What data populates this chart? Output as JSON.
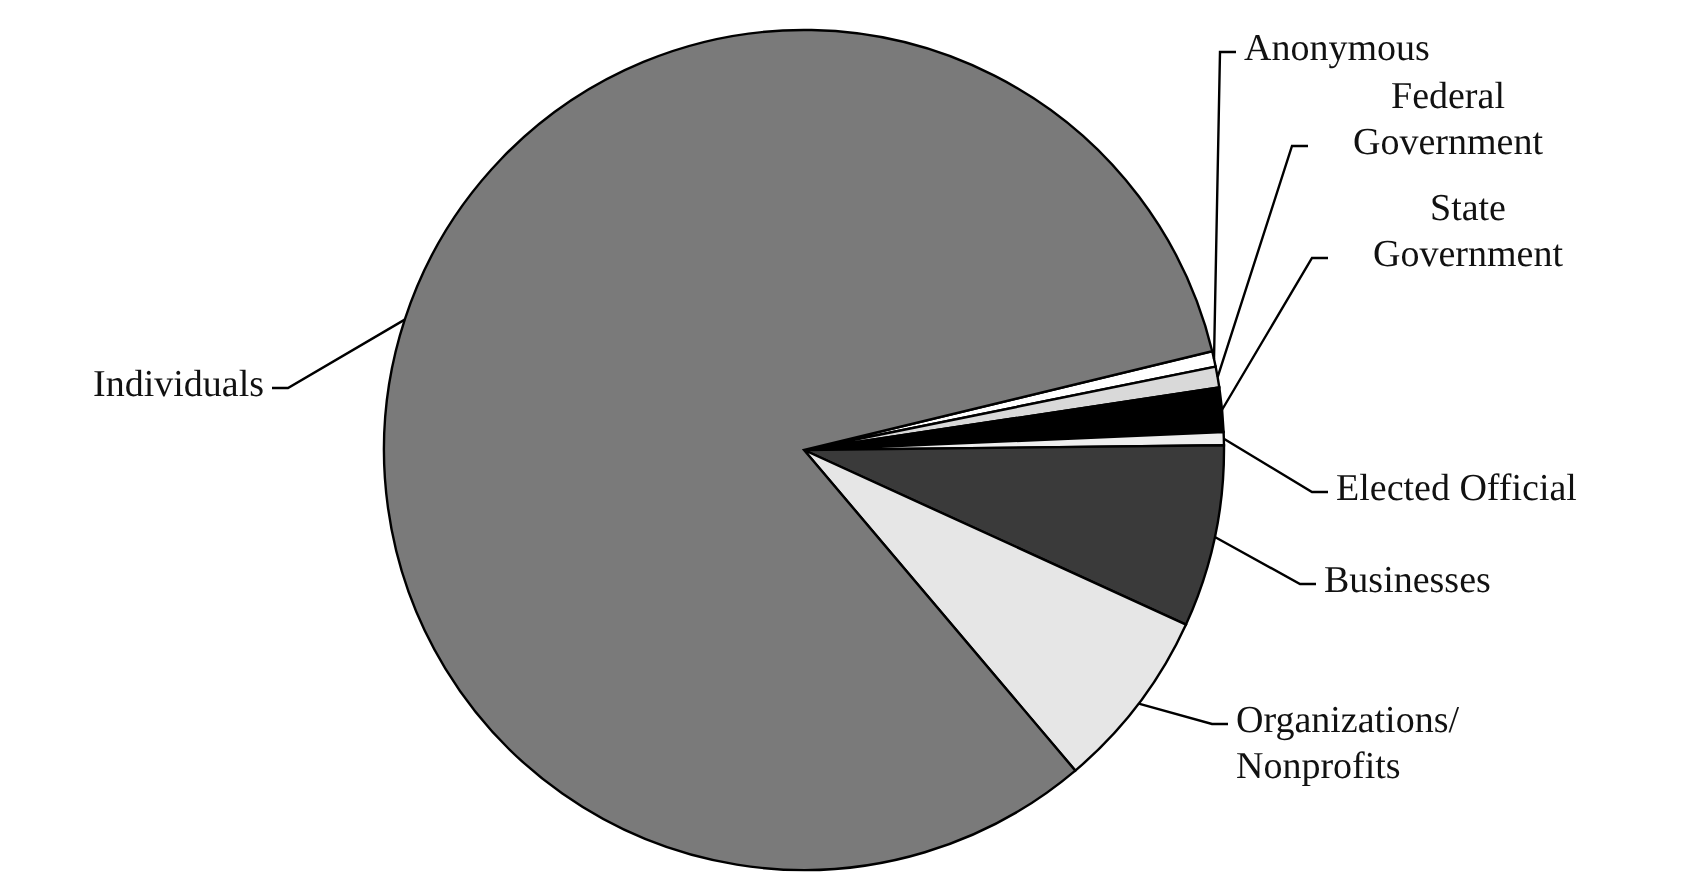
{
  "chart_data": {
    "type": "pie",
    "categories": [
      "Anonymous",
      "Federal Government",
      "State Government",
      "Elected Official",
      "Businesses",
      "Organizations/Nonprofits",
      "Individuals"
    ],
    "values": [
      0.6,
      0.8,
      1.7,
      0.5,
      7.0,
      7.0,
      82.4
    ],
    "colors": [
      "#ffffff",
      "#d9d9d9",
      "#000000",
      "#eeeeee",
      "#3a3a3a",
      "#e6e6e6",
      "#7a7a7a"
    ]
  }
}
